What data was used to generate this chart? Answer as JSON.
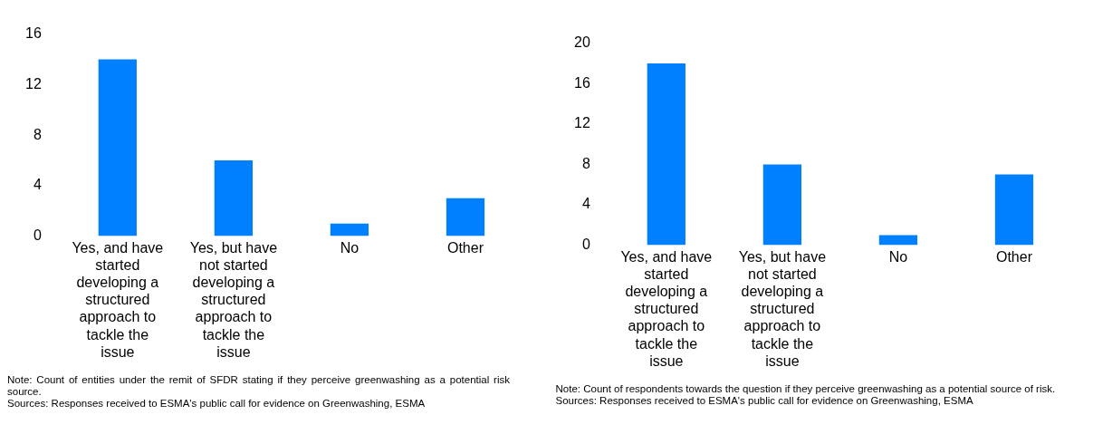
{
  "chart_data": [
    {
      "type": "bar",
      "categories": [
        "Yes, and have started developing a structured approach to tackle the issue",
        "Yes, but have not started developing a structured approach to tackle the issue",
        "No",
        "Other"
      ],
      "values": [
        14,
        6,
        1,
        3
      ],
      "color": "#0080ff",
      "ylim": [
        0,
        16
      ],
      "yticks": [
        0,
        4,
        8,
        12,
        16
      ],
      "grid": false,
      "legend": false,
      "annotations": [
        "Note: Count of entities under the remit of SFDR stating if they perceive greenwashing as a potential risk source.",
        "Sources: Responses received to ESMA's public call for evidence on Greenwashing, ESMA"
      ]
    },
    {
      "type": "bar",
      "categories": [
        "Yes, and have started developing a structured approach to tackle the issue",
        "Yes, but have not started developing a structured approach to tackle the issue",
        "No",
        "Other"
      ],
      "values": [
        18,
        8,
        1,
        7
      ],
      "color": "#0080ff",
      "ylim": [
        0,
        20
      ],
      "yticks": [
        0,
        4,
        8,
        12,
        16,
        20
      ],
      "grid": false,
      "legend": false,
      "annotations": [
        "Note: Count of respondents towards the question if they perceive greenwashing as a potential source of risk.",
        "Sources: Responses received to ESMA's public call for evidence on Greenwashing, ESMA"
      ]
    }
  ]
}
